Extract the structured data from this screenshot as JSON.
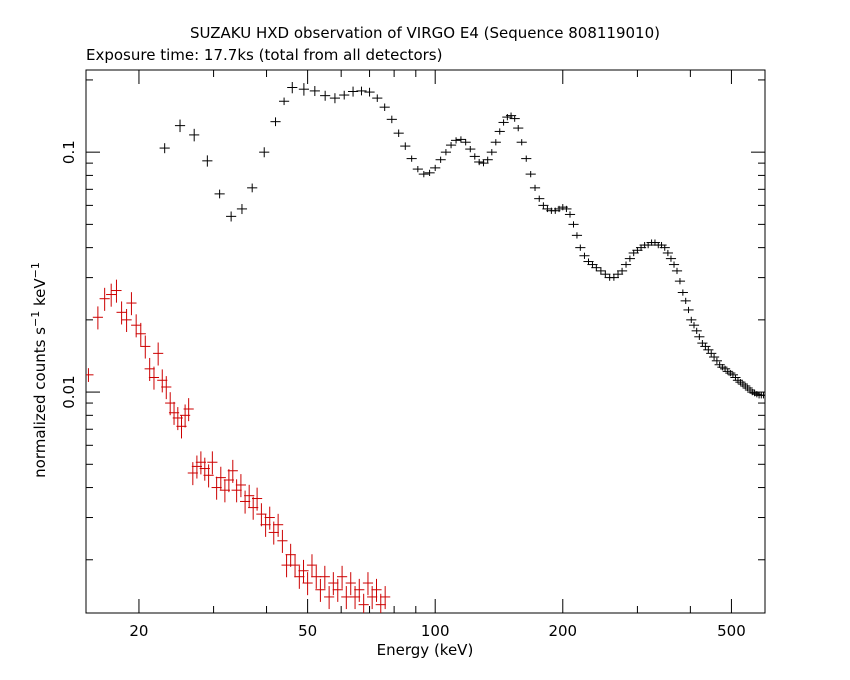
{
  "chart_data": {
    "type": "scatter",
    "title": "SUZAKU HXD observation of VIRGO E4 (Sequence 808119010)",
    "subtitle": "Exposure time: 17.7ks (total from all detectors)",
    "xlabel": "Energy (keV)",
    "ylabel_main": "normalized counts s",
    "ylabel_sup1": "−1",
    "ylabel_mid": " keV",
    "ylabel_sup2": "−1",
    "x_scale": "log",
    "y_scale": "log",
    "xlim": [
      15,
      600
    ],
    "ylim": [
      0.0012,
      0.22
    ],
    "x_ticks": [
      20,
      50,
      100,
      200,
      500
    ],
    "x_tick_labels": [
      "20",
      "50",
      "100",
      "200",
      "500"
    ],
    "y_ticks": [
      0.01,
      0.1
    ],
    "y_tick_labels": [
      "0.01",
      "0.1"
    ],
    "grid": false,
    "series": [
      {
        "color": "#000000",
        "points": [
          [
            23,
            0.104,
            0.8
          ],
          [
            25,
            0.129,
            1.0
          ],
          [
            27,
            0.118,
            1.0
          ],
          [
            29,
            0.092,
            0.9
          ],
          [
            31,
            0.067,
            0.7
          ],
          [
            33,
            0.054,
            0.8
          ],
          [
            35,
            0.058,
            0.8
          ],
          [
            37,
            0.071,
            0.7
          ],
          [
            39.5,
            0.1,
            0.8
          ],
          [
            42,
            0.134,
            0.7
          ],
          [
            44,
            0.163,
            0.6
          ],
          [
            46,
            0.186,
            0.9
          ],
          [
            49,
            0.183,
            1.0
          ],
          [
            52,
            0.18,
            0.8
          ],
          [
            55,
            0.172,
            0.8
          ],
          [
            58,
            0.168,
            0.8
          ],
          [
            61,
            0.173,
            0.7
          ],
          [
            64,
            0.179,
            0.8
          ],
          [
            67,
            0.18,
            0.7
          ],
          [
            70,
            0.178,
            0.7
          ],
          [
            73,
            0.168,
            0.6
          ],
          [
            76,
            0.154,
            0.6
          ],
          [
            79,
            0.137,
            0.6
          ],
          [
            82,
            0.12,
            0.6
          ],
          [
            85,
            0.106,
            0.6
          ],
          [
            88,
            0.094,
            0.5
          ],
          [
            91,
            0.085,
            0.5
          ],
          [
            94,
            0.081,
            0.5
          ],
          [
            97,
            0.082,
            0.5
          ],
          [
            100,
            0.086,
            0.5
          ],
          [
            103,
            0.093,
            0.5
          ],
          [
            106,
            0.1,
            0.5
          ],
          [
            109,
            0.107,
            0.5
          ],
          [
            112,
            0.112,
            0.5
          ],
          [
            115,
            0.113,
            0.5
          ],
          [
            118,
            0.11,
            0.5
          ],
          [
            121,
            0.103,
            0.5
          ],
          [
            124,
            0.096,
            0.5
          ],
          [
            127,
            0.091,
            0.5
          ],
          [
            130,
            0.09,
            0.5
          ],
          [
            133,
            0.093,
            0.5
          ],
          [
            136,
            0.1,
            0.5
          ],
          [
            139,
            0.11,
            0.5
          ],
          [
            142,
            0.122,
            0.5
          ],
          [
            145,
            0.133,
            0.5
          ],
          [
            148,
            0.14,
            0.5
          ],
          [
            151,
            0.142,
            0.5
          ],
          [
            154,
            0.138,
            0.5
          ],
          [
            157,
            0.126,
            0.5
          ],
          [
            160,
            0.11,
            0.5
          ],
          [
            164,
            0.094,
            0.5
          ],
          [
            168,
            0.081,
            0.5
          ],
          [
            172,
            0.071,
            0.5
          ],
          [
            176,
            0.064,
            0.5
          ],
          [
            180,
            0.06,
            0.5
          ],
          [
            184,
            0.058,
            0.5
          ],
          [
            188,
            0.057,
            0.5
          ],
          [
            192,
            0.057,
            0.5
          ],
          [
            196,
            0.058,
            0.5
          ],
          [
            200,
            0.059,
            0.5
          ],
          [
            204,
            0.058,
            0.5
          ],
          [
            208,
            0.055,
            0.5
          ],
          [
            212,
            0.05,
            0.5
          ],
          [
            216,
            0.045,
            0.5
          ],
          [
            220,
            0.04,
            0.5
          ],
          [
            225,
            0.037,
            0.5
          ],
          [
            230,
            0.035,
            0.5
          ],
          [
            235,
            0.034,
            0.5
          ],
          [
            240,
            0.033,
            0.5
          ],
          [
            246,
            0.032,
            0.5
          ],
          [
            252,
            0.031,
            0.5
          ],
          [
            258,
            0.03,
            0.5
          ],
          [
            264,
            0.03,
            0.5
          ],
          [
            270,
            0.031,
            0.5
          ],
          [
            276,
            0.032,
            0.5
          ],
          [
            282,
            0.034,
            0.5
          ],
          [
            288,
            0.036,
            0.5
          ],
          [
            294,
            0.038,
            0.5
          ],
          [
            300,
            0.039,
            0.5
          ],
          [
            306,
            0.04,
            0.5
          ],
          [
            312,
            0.041,
            0.5
          ],
          [
            318,
            0.041,
            0.5
          ],
          [
            324,
            0.042,
            0.5
          ],
          [
            330,
            0.042,
            0.5
          ],
          [
            336,
            0.041,
            0.5
          ],
          [
            342,
            0.041,
            0.5
          ],
          [
            348,
            0.04,
            0.5
          ],
          [
            354,
            0.038,
            0.5
          ],
          [
            360,
            0.036,
            0.5
          ],
          [
            366,
            0.034,
            0.5
          ],
          [
            372,
            0.032,
            0.5
          ],
          [
            378,
            0.029,
            0.5
          ],
          [
            384,
            0.026,
            0.5
          ],
          [
            390,
            0.024,
            0.5
          ],
          [
            396,
            0.022,
            0.5
          ],
          [
            402,
            0.02,
            0.5
          ],
          [
            408,
            0.019,
            0.5
          ],
          [
            414,
            0.018,
            0.5
          ],
          [
            420,
            0.017,
            0.5
          ],
          [
            427,
            0.016,
            0.5
          ],
          [
            434,
            0.0155,
            0.5
          ],
          [
            441,
            0.015,
            0.5
          ],
          [
            448,
            0.0145,
            0.5
          ],
          [
            455,
            0.014,
            0.5
          ],
          [
            462,
            0.0135,
            0.5
          ],
          [
            469,
            0.013,
            0.5
          ],
          [
            476,
            0.0127,
            0.5
          ],
          [
            483,
            0.0125,
            0.5
          ],
          [
            490,
            0.0122,
            0.5
          ],
          [
            497,
            0.012,
            0.5
          ],
          [
            504,
            0.0118,
            0.5
          ],
          [
            511,
            0.0115,
            0.5
          ],
          [
            518,
            0.0112,
            0.5
          ],
          [
            525,
            0.011,
            0.5
          ],
          [
            532,
            0.0108,
            0.5
          ],
          [
            539,
            0.0106,
            0.5
          ],
          [
            546,
            0.0104,
            0.5
          ],
          [
            553,
            0.0102,
            0.5
          ],
          [
            560,
            0.01,
            0.5
          ],
          [
            567,
            0.0099,
            0.5
          ],
          [
            574,
            0.0098,
            0.5
          ],
          [
            581,
            0.0097,
            0.5
          ],
          [
            588,
            0.0097,
            0.5
          ],
          [
            595,
            0.0097,
            0.5
          ]
        ]
      },
      {
        "color": "#cc0000",
        "points": [
          [
            15.2,
            0.0118,
            0.3
          ],
          [
            16.0,
            0.0205,
            0.5
          ],
          [
            16.6,
            0.0245,
            0.5
          ],
          [
            17.2,
            0.0255,
            0.5
          ],
          [
            17.7,
            0.0265,
            0.5
          ],
          [
            18.2,
            0.0215,
            0.5
          ],
          [
            18.7,
            0.02,
            0.5
          ],
          [
            19.2,
            0.0235,
            0.5
          ],
          [
            19.7,
            0.019,
            0.5
          ],
          [
            20.2,
            0.0175,
            0.5
          ],
          [
            20.7,
            0.0155,
            0.5
          ],
          [
            21.2,
            0.0125,
            0.5
          ],
          [
            21.7,
            0.0115,
            0.5
          ],
          [
            22.2,
            0.0145,
            0.5
          ],
          [
            22.7,
            0.0112,
            0.5
          ],
          [
            23.2,
            0.0105,
            0.5
          ],
          [
            23.7,
            0.009,
            0.5
          ],
          [
            24.2,
            0.0082,
            0.5
          ],
          [
            24.7,
            0.0078,
            0.5
          ],
          [
            25.2,
            0.0072,
            0.5
          ],
          [
            25.7,
            0.008,
            0.5
          ],
          [
            26.2,
            0.0085,
            0.5
          ],
          [
            26.8,
            0.0046,
            0.5
          ],
          [
            27.4,
            0.0049,
            0.5
          ],
          [
            28.0,
            0.0051,
            0.5
          ],
          [
            28.6,
            0.0048,
            0.5
          ],
          [
            29.2,
            0.0045,
            0.5
          ],
          [
            29.8,
            0.0051,
            0.5
          ],
          [
            30.5,
            0.004,
            0.5
          ],
          [
            31.2,
            0.0044,
            0.5
          ],
          [
            31.9,
            0.0039,
            0.5
          ],
          [
            32.6,
            0.0043,
            0.5
          ],
          [
            33.3,
            0.0047,
            0.5
          ],
          [
            34.0,
            0.0039,
            0.5
          ],
          [
            34.8,
            0.0041,
            0.5
          ],
          [
            35.6,
            0.0035,
            0.5
          ],
          [
            36.4,
            0.0037,
            0.5
          ],
          [
            37.2,
            0.0033,
            0.5
          ],
          [
            38.0,
            0.0036,
            0.5
          ],
          [
            38.9,
            0.0031,
            0.5
          ],
          [
            39.8,
            0.0028,
            0.5
          ],
          [
            40.7,
            0.003,
            0.5
          ],
          [
            41.6,
            0.0026,
            0.5
          ],
          [
            42.6,
            0.0028,
            0.5
          ],
          [
            43.6,
            0.0024,
            0.5
          ],
          [
            44.6,
            0.0019,
            0.5
          ],
          [
            45.6,
            0.0021,
            0.5
          ],
          [
            46.7,
            0.0019,
            0.5
          ],
          [
            47.8,
            0.0017,
            0.5
          ],
          [
            48.9,
            0.0018,
            0.5
          ],
          [
            50.0,
            0.0016,
            0.5
          ],
          [
            51.2,
            0.0019,
            0.5
          ],
          [
            52.4,
            0.0017,
            0.5
          ],
          [
            53.6,
            0.0015,
            0.5
          ],
          [
            54.9,
            0.0017,
            0.5
          ],
          [
            56.2,
            0.0014,
            0.5
          ],
          [
            57.5,
            0.0016,
            0.5
          ],
          [
            58.9,
            0.0015,
            0.5
          ],
          [
            60.3,
            0.0017,
            0.5
          ],
          [
            61.7,
            0.0014,
            0.5
          ],
          [
            63.2,
            0.0016,
            0.5
          ],
          [
            64.7,
            0.0014,
            0.5
          ],
          [
            66.2,
            0.0015,
            0.5
          ],
          [
            67.8,
            0.0013,
            0.5
          ],
          [
            69.4,
            0.0016,
            0.5
          ],
          [
            71.0,
            0.0014,
            0.5
          ],
          [
            72.7,
            0.0015,
            0.5
          ],
          [
            74.4,
            0.0013,
            0.5
          ],
          [
            76.2,
            0.0014,
            0.5
          ]
        ]
      }
    ]
  }
}
